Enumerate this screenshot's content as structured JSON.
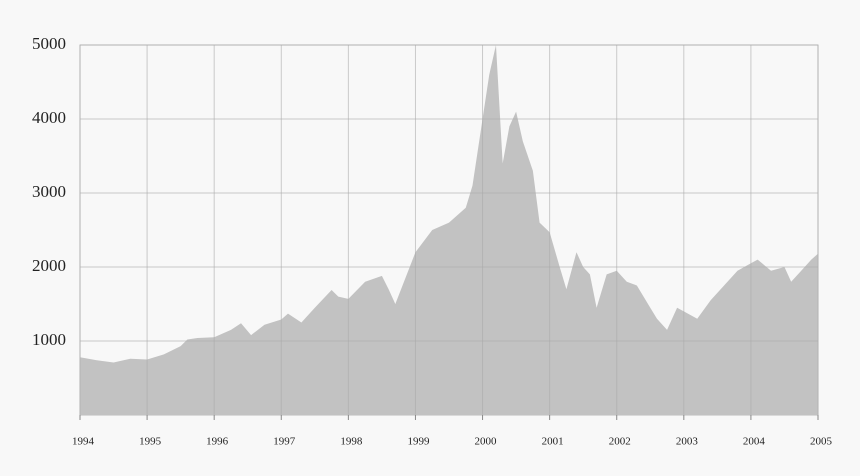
{
  "chart_data": {
    "type": "area",
    "color": "#c2c2c2",
    "grid": true,
    "xlim": [
      1994,
      2005
    ],
    "xticks": [
      1994,
      1995,
      1996,
      1997,
      1998,
      1999,
      2000,
      2001,
      2002,
      2003,
      2004,
      2005
    ],
    "ylim": [
      0,
      5000
    ],
    "yticks": [
      1000,
      2000,
      3000,
      4000,
      5000
    ],
    "x": [
      1994.0,
      1994.25,
      1994.5,
      1994.75,
      1995.0,
      1995.25,
      1995.5,
      1995.6,
      1995.75,
      1996.0,
      1996.25,
      1996.4,
      1996.55,
      1996.75,
      1997.0,
      1997.1,
      1997.3,
      1997.5,
      1997.75,
      1997.85,
      1998.0,
      1998.25,
      1998.5,
      1998.6,
      1998.7,
      1998.85,
      1999.0,
      1999.25,
      1999.5,
      1999.75,
      1999.85,
      2000.0,
      2000.1,
      2000.2,
      2000.3,
      2000.4,
      2000.5,
      2000.6,
      2000.75,
      2000.85,
      2001.0,
      2001.15,
      2001.25,
      2001.4,
      2001.5,
      2001.6,
      2001.7,
      2001.85,
      2002.0,
      2002.15,
      2002.3,
      2002.5,
      2002.6,
      2002.75,
      2002.9,
      2003.0,
      2003.2,
      2003.4,
      2003.6,
      2003.8,
      2004.0,
      2004.1,
      2004.3,
      2004.5,
      2004.6,
      2004.75,
      2004.9,
      2005.0
    ],
    "values": [
      780,
      740,
      710,
      760,
      750,
      820,
      930,
      1020,
      1040,
      1050,
      1150,
      1240,
      1080,
      1220,
      1290,
      1370,
      1250,
      1450,
      1690,
      1600,
      1570,
      1800,
      1880,
      1700,
      1500,
      1850,
      2200,
      2500,
      2600,
      2800,
      3100,
      4000,
      4600,
      5000,
      3400,
      3900,
      4100,
      3700,
      3300,
      2600,
      2470,
      2000,
      1700,
      2200,
      2000,
      1900,
      1450,
      1900,
      1950,
      1800,
      1750,
      1450,
      1300,
      1150,
      1450,
      1400,
      1300,
      1550,
      1750,
      1950,
      2050,
      2100,
      1950,
      2000,
      1800,
      1950,
      2100,
      2180
    ]
  }
}
